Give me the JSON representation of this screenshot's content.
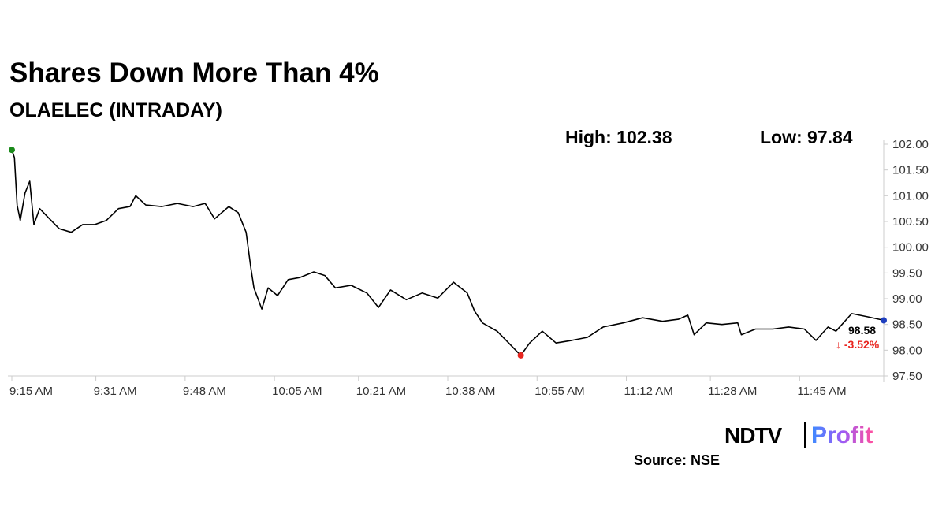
{
  "chart_data": {
    "type": "line",
    "title": "Shares Down More Than 4%",
    "subtitle": "OLAELEC (INTRADAY)",
    "high_label": "High: 102.38",
    "low_label": "Low: 97.84",
    "last_label": "98.58",
    "change_label": "↓ -3.52%",
    "source": "Source: NSE",
    "brand": {
      "left": "NDTV",
      "right": "Profit"
    },
    "color": "#000000",
    "marker_colors": {
      "start": "#1a8a1a",
      "low": "#e8251f",
      "end": "#1f3fbf"
    },
    "change_color": "#e8251f",
    "x": [
      0,
      0.5,
      1,
      1.6,
      2.5,
      3.4,
      4.2,
      5.3,
      6.8,
      9,
      11.3,
      13.5,
      15.8,
      18,
      20.3,
      22.5,
      23.6,
      25.5,
      28.5,
      31.5,
      34.5,
      36.8,
      38.6,
      41.3,
      43.1,
      44.6,
      45.5,
      46.1,
      47.6,
      48.8,
      50.6,
      52.6,
      54.8,
      57.5,
      59.6,
      61.6,
      64.6,
      67.6,
      69.8,
      72.1,
      75.1,
      78.1,
      81.1,
      84.1,
      86.7,
      88.1,
      89.6,
      92.4,
      94.6,
      96.9,
      98.6,
      101,
      103.6,
      106.6,
      109.6,
      112.6,
      116.4,
      120.1,
      123.9,
      126.9,
      128.7,
      129.9,
      132.2,
      135.2,
      138.2,
      138.9,
      141.6,
      144.9,
      147.9,
      150.9,
      153.1,
      155.4,
      156.9,
      159.9,
      162.9,
      166
    ],
    "values": [
      101.89,
      101.74,
      100.82,
      100.52,
      101.05,
      101.28,
      100.44,
      100.75,
      100.59,
      100.36,
      100.29,
      100.44,
      100.44,
      100.52,
      100.75,
      100.79,
      101.0,
      100.82,
      100.79,
      100.85,
      100.79,
      100.85,
      100.55,
      100.79,
      100.67,
      100.29,
      99.6,
      99.21,
      98.8,
      99.21,
      99.06,
      99.37,
      99.41,
      99.52,
      99.45,
      99.21,
      99.26,
      99.11,
      98.83,
      99.17,
      98.98,
      99.11,
      99.01,
      99.32,
      99.11,
      98.76,
      98.53,
      98.37,
      98.14,
      97.9,
      98.14,
      98.37,
      98.14,
      98.19,
      98.25,
      98.45,
      98.53,
      98.63,
      98.56,
      98.6,
      98.68,
      98.3,
      98.53,
      98.5,
      98.53,
      98.3,
      98.41,
      98.41,
      98.45,
      98.41,
      98.19,
      98.45,
      98.37,
      98.71,
      98.65,
      98.58
    ],
    "xlim": [
      0,
      166
    ],
    "xticks": [
      {
        "value": 0,
        "label": "9:15 AM"
      },
      {
        "value": 16,
        "label": "9:31 AM"
      },
      {
        "value": 33,
        "label": "9:48 AM"
      },
      {
        "value": 50,
        "label": "10:05 AM"
      },
      {
        "value": 66,
        "label": "10:21 AM"
      },
      {
        "value": 83,
        "label": "10:38 AM"
      },
      {
        "value": 100,
        "label": "10:55 AM"
      },
      {
        "value": 117,
        "label": "11:12 AM"
      },
      {
        "value": 133,
        "label": "11:28 AM"
      },
      {
        "value": 150,
        "label": "11:45 AM"
      }
    ],
    "ylim": [
      97.5,
      102.0
    ],
    "yticks": [
      {
        "value": 97.5,
        "label": "97.50"
      },
      {
        "value": 98.0,
        "label": "98.00"
      },
      {
        "value": 98.5,
        "label": "98.50"
      },
      {
        "value": 99.0,
        "label": "99.00"
      },
      {
        "value": 99.5,
        "label": "99.50"
      },
      {
        "value": 100.0,
        "label": "100.00"
      },
      {
        "value": 100.5,
        "label": "100.50"
      },
      {
        "value": 101.0,
        "label": "101.00"
      },
      {
        "value": 101.5,
        "label": "101.50"
      },
      {
        "value": 102.0,
        "label": "102.00"
      }
    ]
  }
}
